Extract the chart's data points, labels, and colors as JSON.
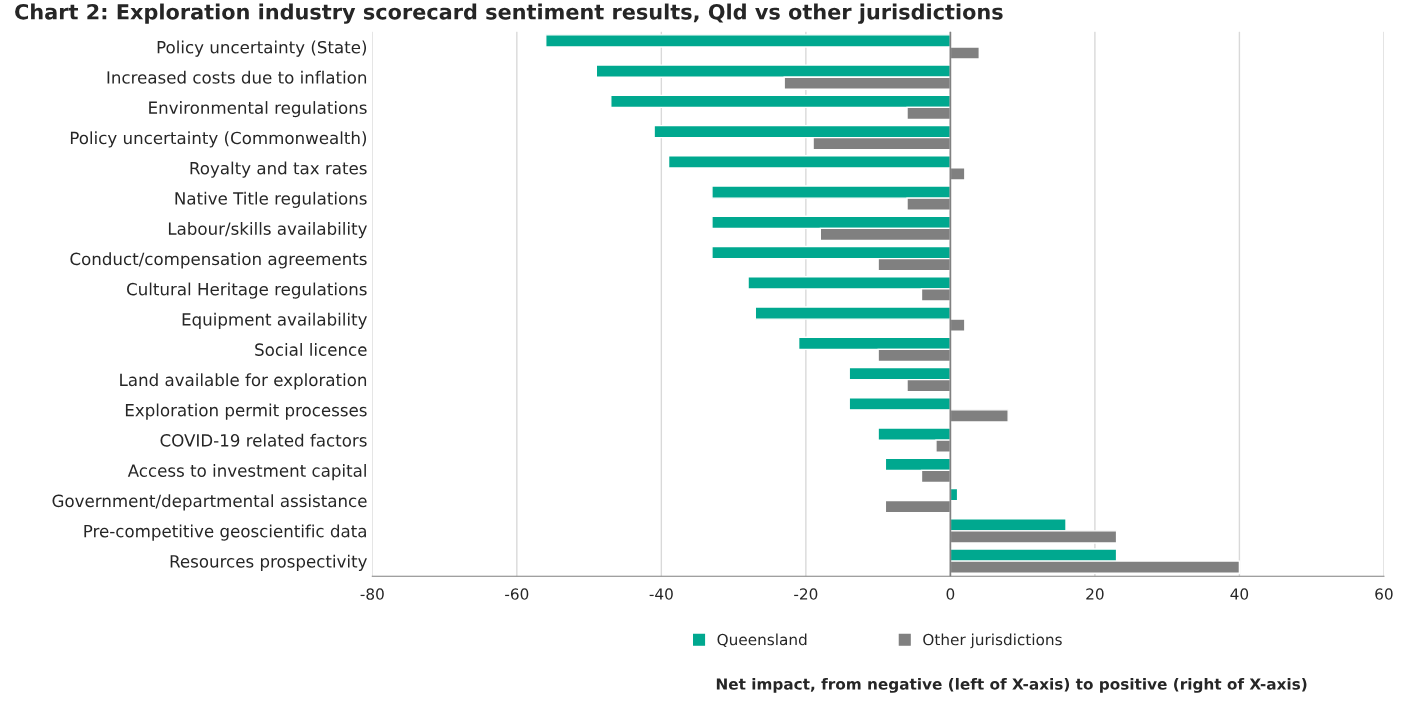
{
  "chart_data": {
    "type": "bar",
    "orientation": "horizontal",
    "title": "Chart 2: Exploration industry scorecard sentiment results, Qld vs other jurisdictions",
    "annotations": [
      "Net impact, from negative (left of X-axis) to positive (right of X-axis)"
    ],
    "categories": [
      "Policy uncertainty (State)",
      "Increased costs due to inflation",
      "Environmental regulations",
      "Policy uncertainty (Commonwealth)",
      "Royalty and tax rates",
      "Native Title regulations",
      "Labour/skills availability",
      "Conduct/compensation agreements",
      "Cultural Heritage regulations",
      "Equipment availability",
      "Social licence",
      "Land available for exploration",
      "Exploration permit processes",
      "COVID-19 related factors",
      "Access to investment capital",
      "Government/departmental assistance",
      "Pre-competitive geoscientific data",
      "Resources prospectivity"
    ],
    "series": [
      {
        "name": "Queensland",
        "color": "#00a88f",
        "values": [
          -56,
          -49,
          -47,
          -41,
          -39,
          -33,
          -33,
          -33,
          -28,
          -27,
          -21,
          -14,
          -14,
          -10,
          -9,
          1,
          16,
          23
        ]
      },
      {
        "name": "Other jurisdictions",
        "color": "#808080",
        "values": [
          4,
          -23,
          -6,
          -19,
          2,
          -6,
          -18,
          -10,
          -4,
          2,
          -10,
          -6,
          8,
          -2,
          -4,
          -9,
          23,
          40
        ]
      }
    ],
    "xlim": [
      -80,
      60
    ],
    "xticks": [
      -80,
      -60,
      -40,
      -20,
      0,
      20,
      40,
      60
    ],
    "grid": "x",
    "legend": "bottom"
  }
}
